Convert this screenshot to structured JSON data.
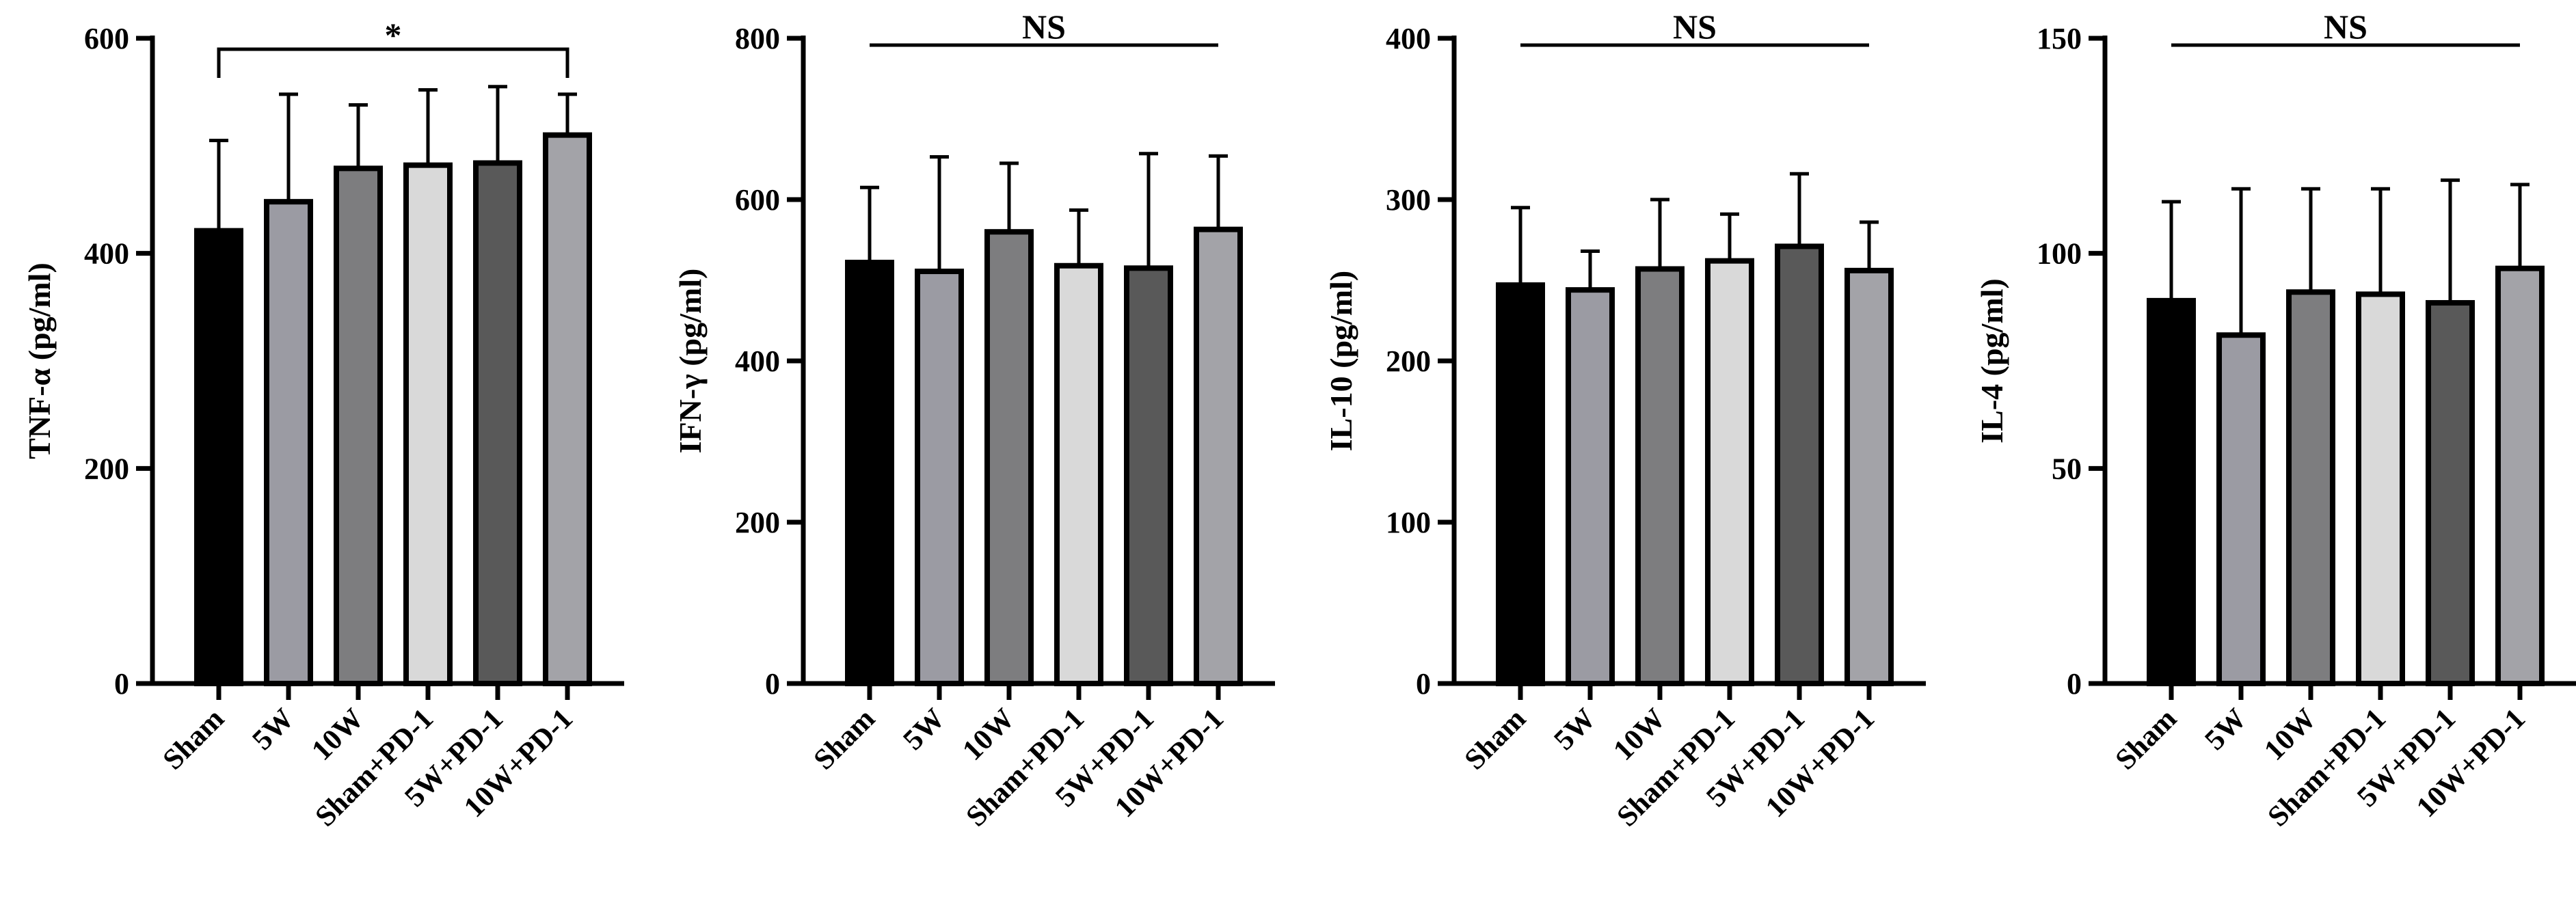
{
  "chart_data": [
    {
      "type": "bar",
      "ylabel": "TNF-α (pg/ml)",
      "ylim": [
        0,
        600
      ],
      "yticks": [
        0,
        200,
        400,
        600
      ],
      "categories": [
        "Sham",
        "5W",
        "10W",
        "Sham+PD-1",
        "5W+PD-1",
        "10W+PD-1"
      ],
      "values": [
        421,
        448,
        479,
        482,
        484,
        510
      ],
      "error_upper": [
        505,
        548,
        538,
        552,
        555,
        548
      ],
      "annotation": {
        "label": "*",
        "type": "bracket",
        "from": 0,
        "to": 5
      }
    },
    {
      "type": "bar",
      "ylabel": "IFN-γ (pg/ml)",
      "ylim": [
        0,
        800
      ],
      "yticks": [
        0,
        200,
        400,
        600,
        800
      ],
      "categories": [
        "Sham",
        "5W",
        "10W",
        "Sham+PD-1",
        "5W+PD-1",
        "10W+PD-1"
      ],
      "values": [
        522,
        511,
        560,
        518,
        515,
        563
      ],
      "error_upper": [
        615,
        653,
        645,
        587,
        657,
        654
      ],
      "annotation": {
        "label": "NS",
        "type": "line",
        "from": 0,
        "to": 5
      }
    },
    {
      "type": "bar",
      "ylabel": "IL-10 (pg/ml)",
      "ylim": [
        0,
        400
      ],
      "yticks": [
        0,
        100,
        200,
        300,
        400
      ],
      "categories": [
        "Sham",
        "5W",
        "10W",
        "Sham+PD-1",
        "5W+PD-1",
        "10W+PD-1"
      ],
      "values": [
        247,
        244,
        257,
        262,
        271,
        256
      ],
      "error_upper": [
        295,
        268,
        300,
        291,
        316,
        286
      ],
      "annotation": {
        "label": "NS",
        "type": "line",
        "from": 0,
        "to": 5
      }
    },
    {
      "type": "bar",
      "ylabel": "IL-4 (pg/ml)",
      "ylim": [
        0,
        150
      ],
      "yticks": [
        0,
        50,
        100,
        150
      ],
      "categories": [
        "Sham",
        "5W",
        "10W",
        "Sham+PD-1",
        "5W+PD-1",
        "10W+PD-1"
      ],
      "values": [
        89,
        81,
        91,
        90.5,
        88.5,
        96.5
      ],
      "error_upper": [
        112,
        115,
        115,
        115,
        117,
        116
      ],
      "annotation": {
        "label": "NS",
        "type": "line",
        "from": 0,
        "to": 5
      }
    }
  ],
  "colors": {
    "bars": [
      "#000000",
      "#9b9ba3",
      "#7d7d7f",
      "#d9d9d9",
      "#595959",
      "#a3a3a8"
    ],
    "axis": "#000000",
    "background": "#ffffff"
  }
}
